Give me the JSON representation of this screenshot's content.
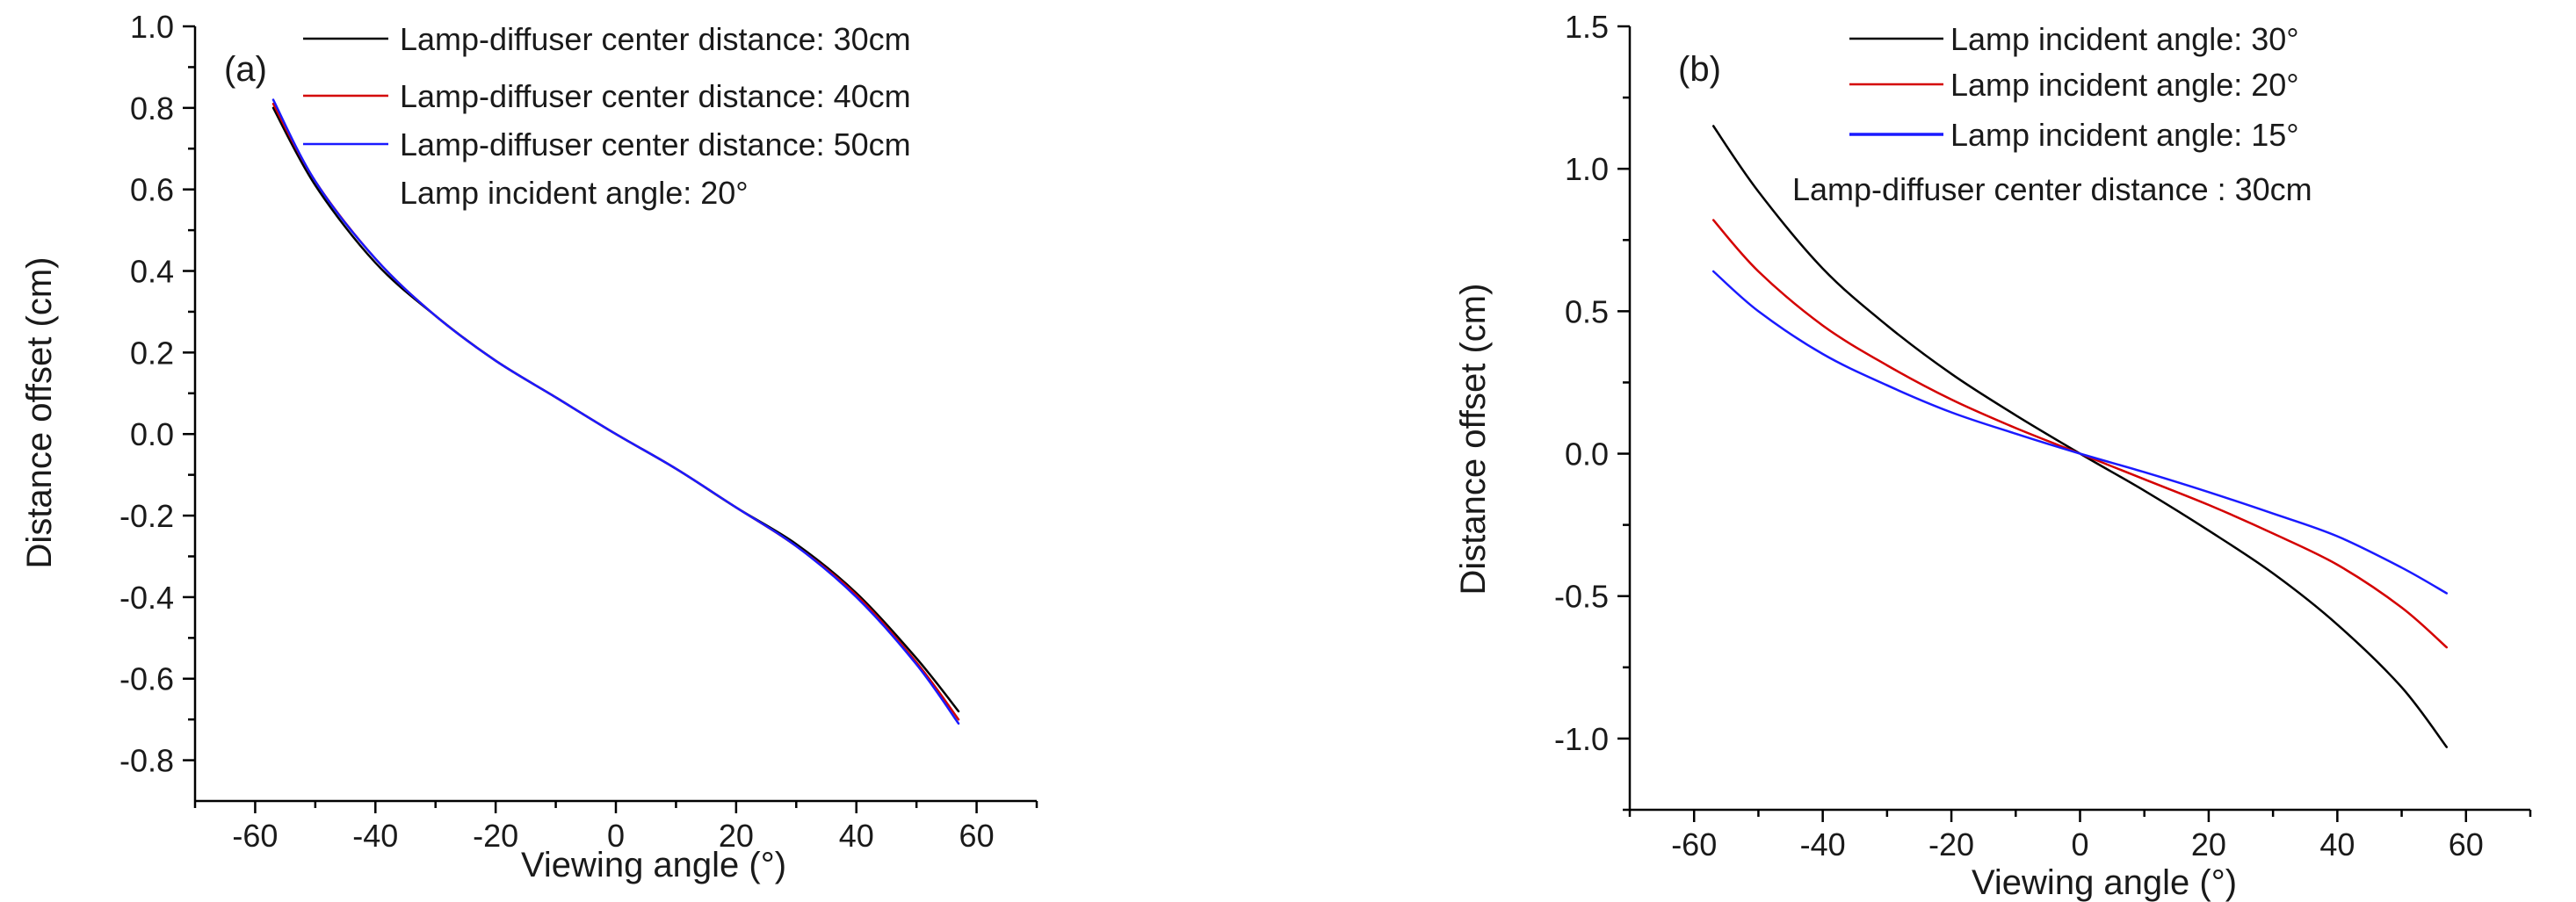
{
  "chart_data": [
    {
      "type": "line",
      "panel_label": "(a)",
      "xlabel": "Viewing angle (°)",
      "ylabel": "Distance offset (cm)",
      "xlim": [
        -70,
        70
      ],
      "ylim": [
        -0.9,
        1.0
      ],
      "xticks": [
        -60,
        -40,
        -20,
        0,
        20,
        40,
        60
      ],
      "xtick_labels": [
        "-60",
        "-40",
        "-20",
        "0",
        "20",
        "40",
        "60"
      ],
      "yticks": [
        -0.8,
        -0.6,
        -0.4,
        -0.2,
        0.0,
        0.2,
        0.4,
        0.6,
        0.8,
        1.0
      ],
      "ytick_labels": [
        "-0.8",
        "-0.6",
        "-0.4",
        "-0.2",
        "0.0",
        "0.2",
        "0.4",
        "0.6",
        "0.8",
        "1.0"
      ],
      "x": [
        -57,
        -50,
        -40,
        -30,
        -20,
        -10,
        0,
        10,
        20,
        30,
        40,
        50,
        57
      ],
      "series": [
        {
          "name": "Lamp-diffuser center distance: 30cm",
          "color": "#000000",
          "values": [
            0.8,
            0.61,
            0.42,
            0.29,
            0.18,
            0.09,
            0.0,
            -0.085,
            -0.18,
            -0.27,
            -0.39,
            -0.55,
            -0.68
          ]
        },
        {
          "name": "Lamp-diffuser center distance: 40cm",
          "color": "#d40000",
          "values": [
            0.81,
            0.62,
            0.43,
            0.29,
            0.18,
            0.09,
            0.0,
            -0.085,
            -0.18,
            -0.275,
            -0.395,
            -0.56,
            -0.7
          ]
        },
        {
          "name": "Lamp-diffuser center distance: 50cm",
          "color": "#1a1aff",
          "values": [
            0.82,
            0.62,
            0.43,
            0.29,
            0.18,
            0.09,
            0.0,
            -0.085,
            -0.18,
            -0.275,
            -0.4,
            -0.565,
            -0.71
          ]
        }
      ],
      "annotation": "Lamp incident angle: 20°",
      "legend_position": "top-right"
    },
    {
      "type": "line",
      "panel_label": "(b)",
      "xlabel": "Viewing angle (°)",
      "ylabel": "Distance offset (cm)",
      "xlim": [
        -70,
        70
      ],
      "ylim": [
        -1.25,
        1.5
      ],
      "xticks": [
        -60,
        -40,
        -20,
        0,
        20,
        40,
        60
      ],
      "xtick_labels": [
        "-60",
        "-40",
        "-20",
        "0",
        "20",
        "40",
        "60"
      ],
      "yticks": [
        -1.0,
        -0.5,
        0.0,
        0.5,
        1.0,
        1.5
      ],
      "ytick_labels": [
        "-1.0",
        "-0.5",
        "0.0",
        "0.5",
        "1.0",
        "1.5"
      ],
      "x": [
        -57,
        -50,
        -40,
        -30,
        -20,
        -10,
        0,
        10,
        20,
        30,
        40,
        50,
        57
      ],
      "series": [
        {
          "name": "Lamp incident angle: 30°",
          "color": "#000000",
          "values": [
            1.15,
            0.92,
            0.65,
            0.45,
            0.28,
            0.135,
            0.0,
            -0.13,
            -0.27,
            -0.42,
            -0.6,
            -0.82,
            -1.03
          ]
        },
        {
          "name": "Lamp incident angle: 20°",
          "color": "#d40000",
          "values": [
            0.82,
            0.64,
            0.45,
            0.31,
            0.19,
            0.09,
            0.0,
            -0.09,
            -0.18,
            -0.28,
            -0.39,
            -0.54,
            -0.68
          ]
        },
        {
          "name": "Lamp incident angle: 15°",
          "color": "#1a1aff",
          "values": [
            0.64,
            0.5,
            0.35,
            0.24,
            0.145,
            0.07,
            0.0,
            -0.065,
            -0.135,
            -0.21,
            -0.29,
            -0.4,
            -0.49
          ]
        }
      ],
      "annotation": "Lamp-diffuser center distance : 30cm",
      "legend_position": "top-right"
    }
  ]
}
